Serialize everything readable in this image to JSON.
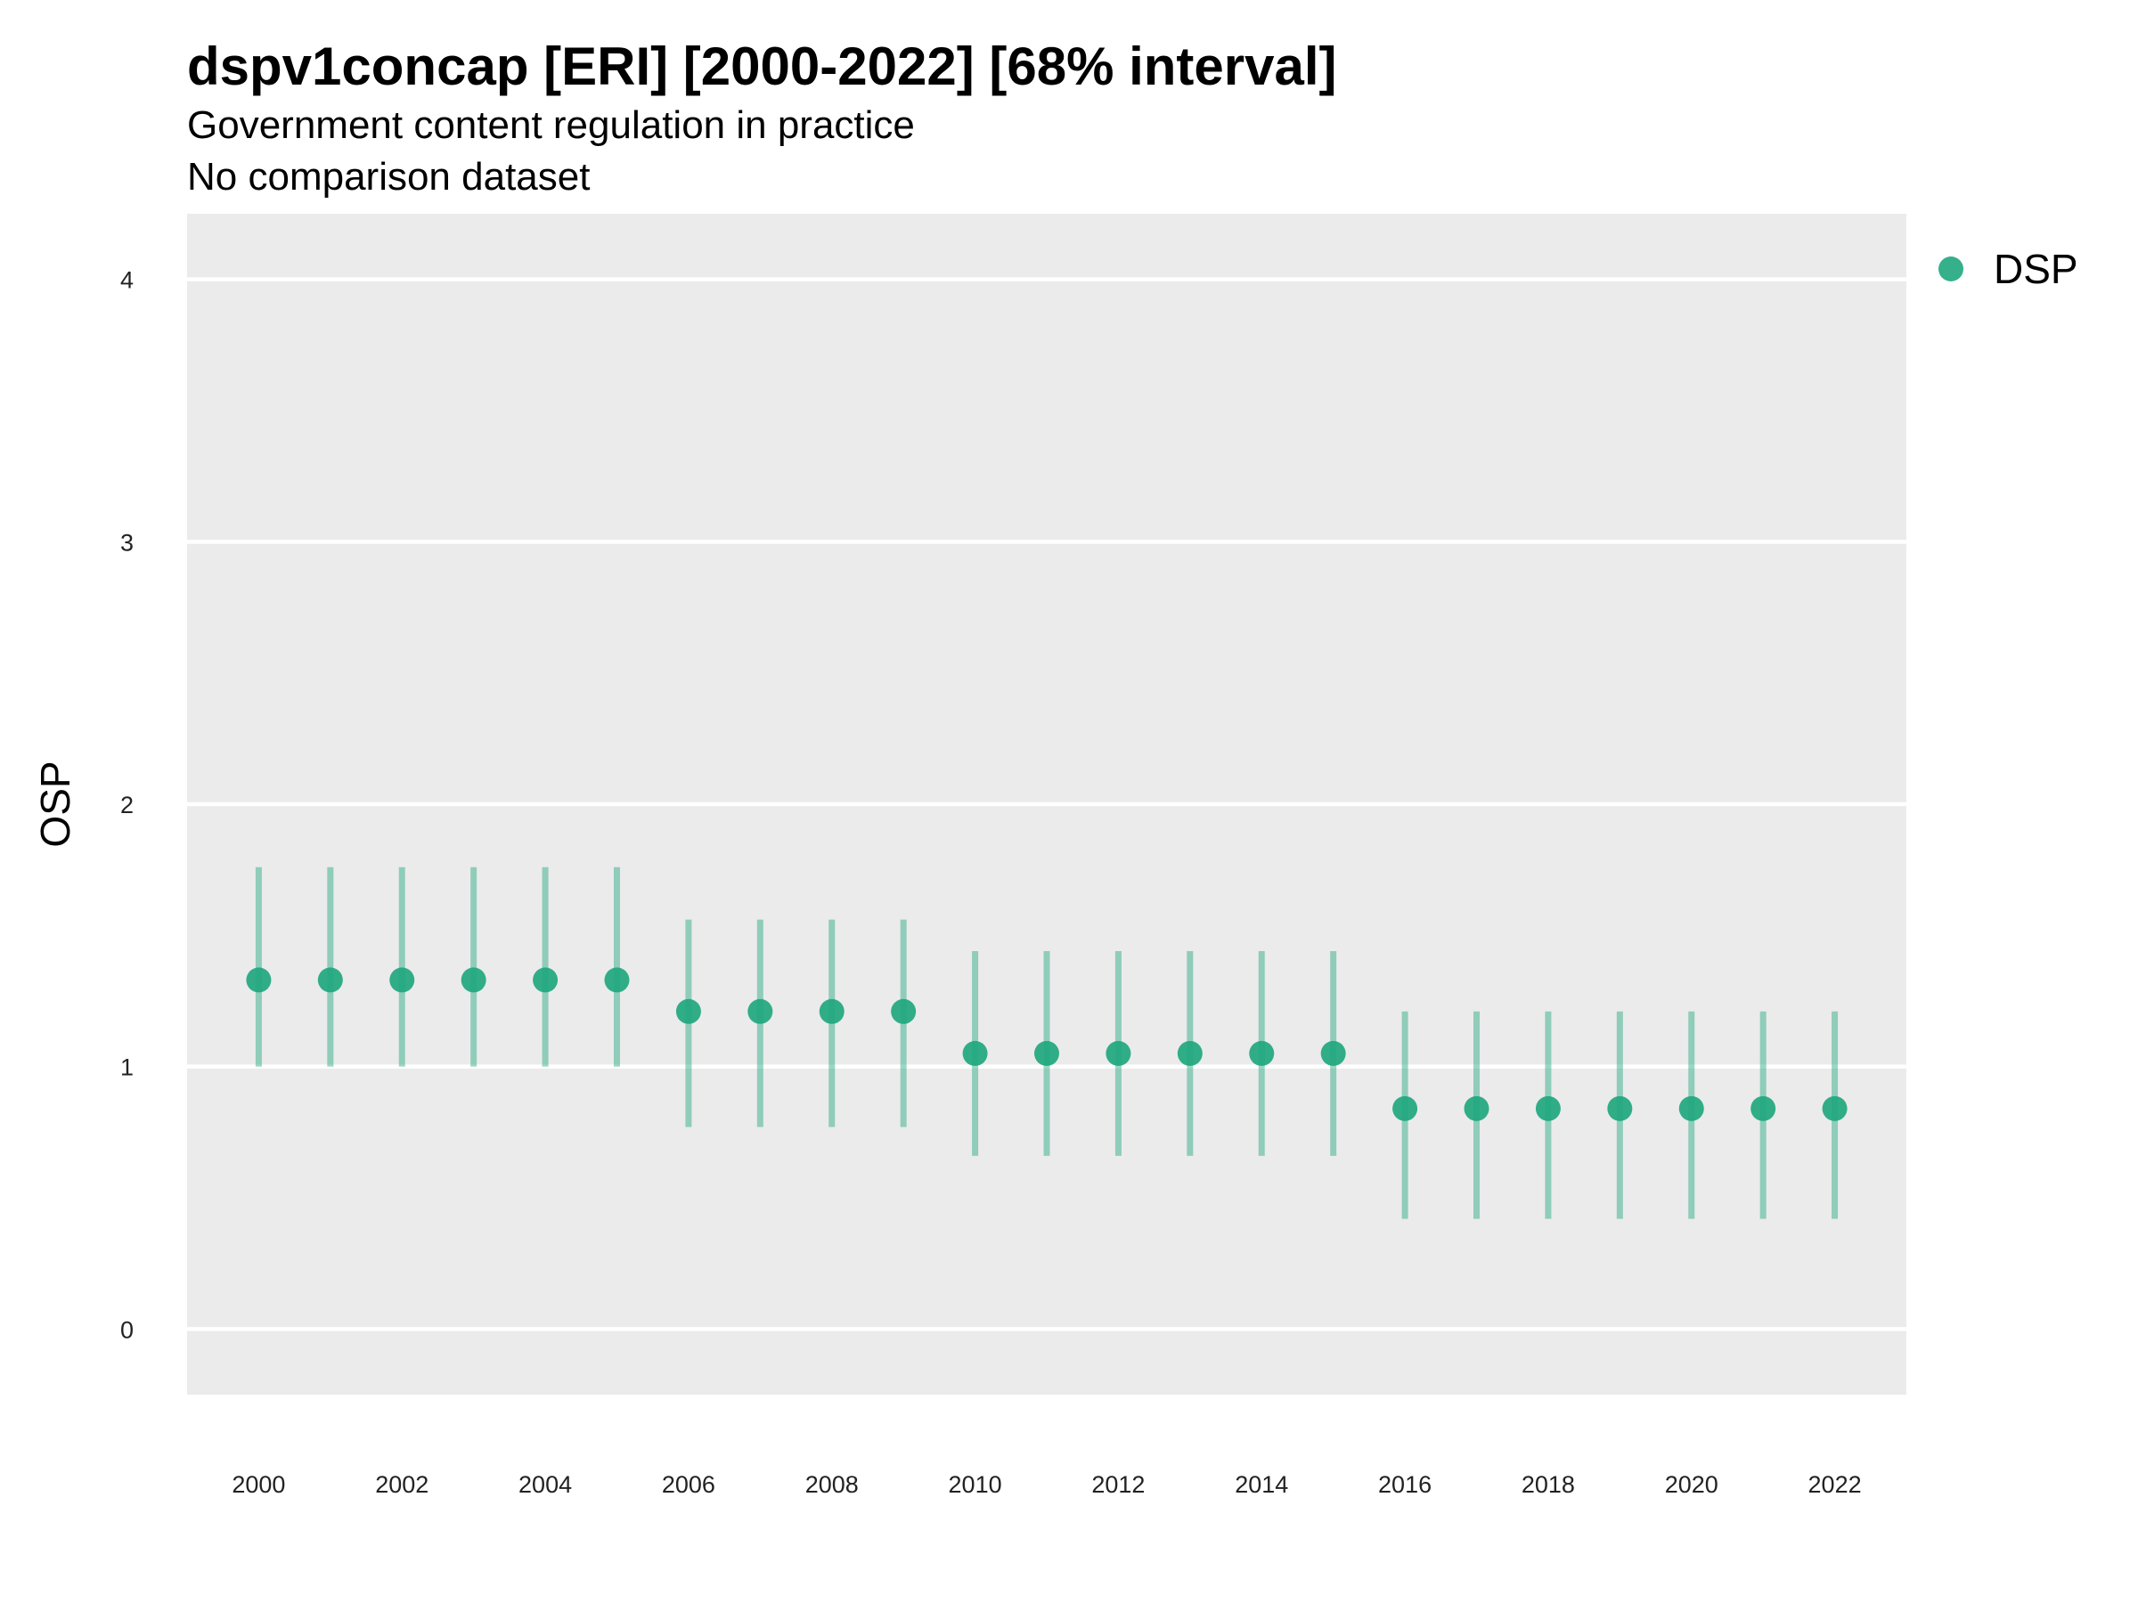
{
  "chart_data": {
    "type": "scatter",
    "title": "dspv1concap [ERI] [2000-2022] [68% interval]",
    "subtitle": "Government content regulation in practice",
    "subtitle2": "No comparison dataset",
    "xlabel": "",
    "ylabel": "OSP",
    "ylim": [
      -0.25,
      4.25
    ],
    "xlim": [
      1999,
      2023
    ],
    "yticks": [
      "0",
      "1",
      "2",
      "3",
      "4"
    ],
    "xticks": [
      "2000",
      "2002",
      "2004",
      "2006",
      "2008",
      "2010",
      "2012",
      "2014",
      "2016",
      "2018",
      "2020",
      "2022"
    ],
    "grid": "horizontal",
    "legend": {
      "placement": "right",
      "entries": [
        "DSP"
      ]
    },
    "series": [
      {
        "name": "DSP",
        "color": "#1fa77e",
        "x": [
          2000,
          2001,
          2002,
          2003,
          2004,
          2005,
          2006,
          2007,
          2008,
          2009,
          2010,
          2011,
          2012,
          2013,
          2014,
          2015,
          2016,
          2017,
          2018,
          2019,
          2020,
          2021,
          2022
        ],
        "y": [
          1.33,
          1.33,
          1.33,
          1.33,
          1.33,
          1.33,
          1.21,
          1.21,
          1.21,
          1.21,
          1.05,
          1.05,
          1.05,
          1.05,
          1.05,
          1.05,
          0.84,
          0.84,
          0.84,
          0.84,
          0.84,
          0.84,
          0.84
        ],
        "lower": [
          1.0,
          1.0,
          1.0,
          1.0,
          1.0,
          1.0,
          0.77,
          0.77,
          0.77,
          0.77,
          0.66,
          0.66,
          0.66,
          0.66,
          0.66,
          0.66,
          0.42,
          0.42,
          0.42,
          0.42,
          0.42,
          0.42,
          0.42
        ],
        "upper": [
          1.76,
          1.76,
          1.76,
          1.76,
          1.76,
          1.76,
          1.56,
          1.56,
          1.56,
          1.56,
          1.44,
          1.44,
          1.44,
          1.44,
          1.44,
          1.44,
          1.21,
          1.21,
          1.21,
          1.21,
          1.21,
          1.21,
          1.21
        ]
      }
    ]
  }
}
